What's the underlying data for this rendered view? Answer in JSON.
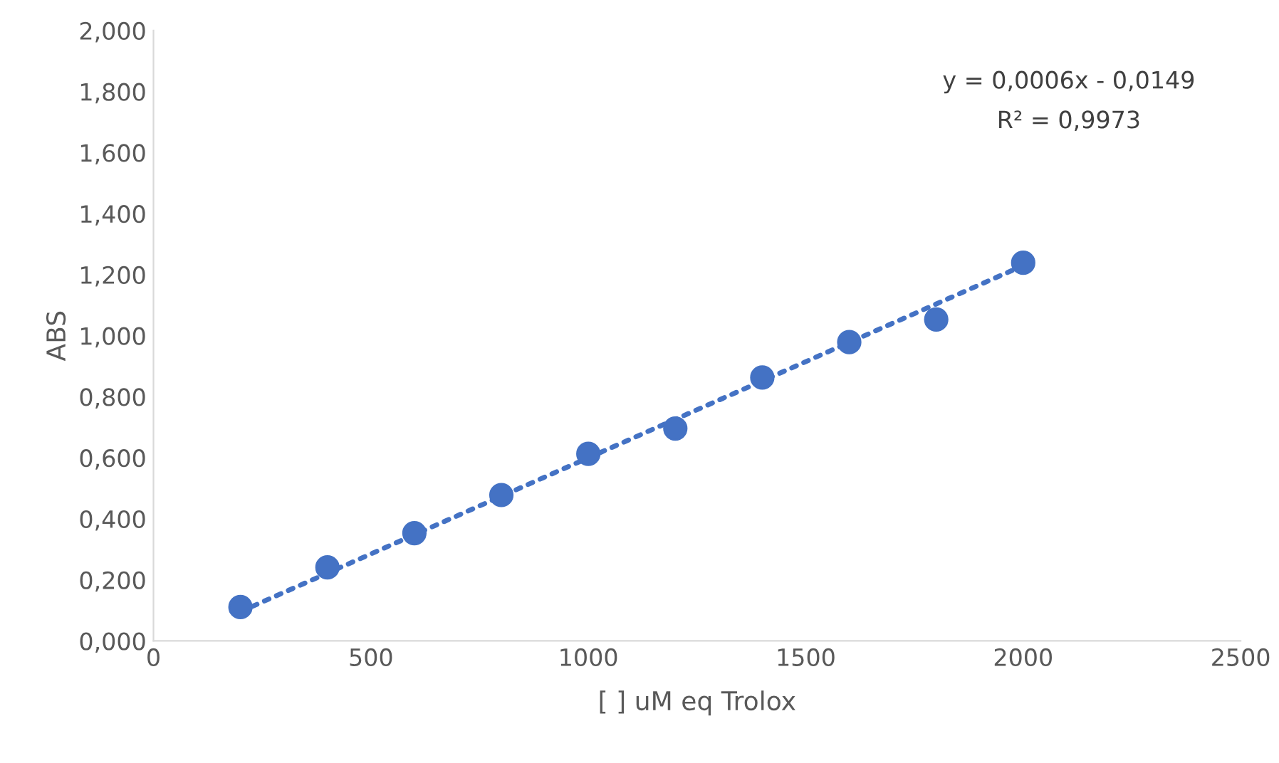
{
  "chart_data": {
    "type": "scatter",
    "xlabel": "[ ] uM eq Trolox",
    "ylabel": "ABS",
    "x": [
      200,
      400,
      600,
      800,
      1000,
      1200,
      1400,
      1600,
      1800,
      2000
    ],
    "series": [
      {
        "color": "#4472c4",
        "marker": "circle",
        "values": [
          0.111,
          0.241,
          0.353,
          0.478,
          0.613,
          0.696,
          0.863,
          0.979,
          1.053,
          1.239
        ]
      },
      {
        "type": "line",
        "color": "#4472c4",
        "line_style": "dotted",
        "x": [
          200,
          2000
        ],
        "values": [
          0.096,
          1.23
        ]
      }
    ],
    "xlim": [
      0,
      2500
    ],
    "xticks": [
      0,
      500,
      1000,
      1500,
      2000,
      2500
    ],
    "ylim": [
      0,
      2
    ],
    "yticks": [
      {
        "value": 0,
        "label": "0,000"
      },
      {
        "value": 0.2,
        "label": "0,200"
      },
      {
        "value": 0.4,
        "label": "0,400"
      },
      {
        "value": 0.6,
        "label": "0,600"
      },
      {
        "value": 0.8,
        "label": "0,800"
      },
      {
        "value": 1.0,
        "label": "1,000"
      },
      {
        "value": 1.2,
        "label": "1,200"
      },
      {
        "value": 1.4,
        "label": "1,400"
      },
      {
        "value": 1.6,
        "label": "1,600"
      },
      {
        "value": 1.8,
        "label": "1,800"
      },
      {
        "value": 2.0,
        "label": "2,000"
      }
    ],
    "grid": false,
    "legend": false,
    "annotations": [
      "y = 0,0006x - 0,0149",
      "R² = 0,9973"
    ]
  }
}
